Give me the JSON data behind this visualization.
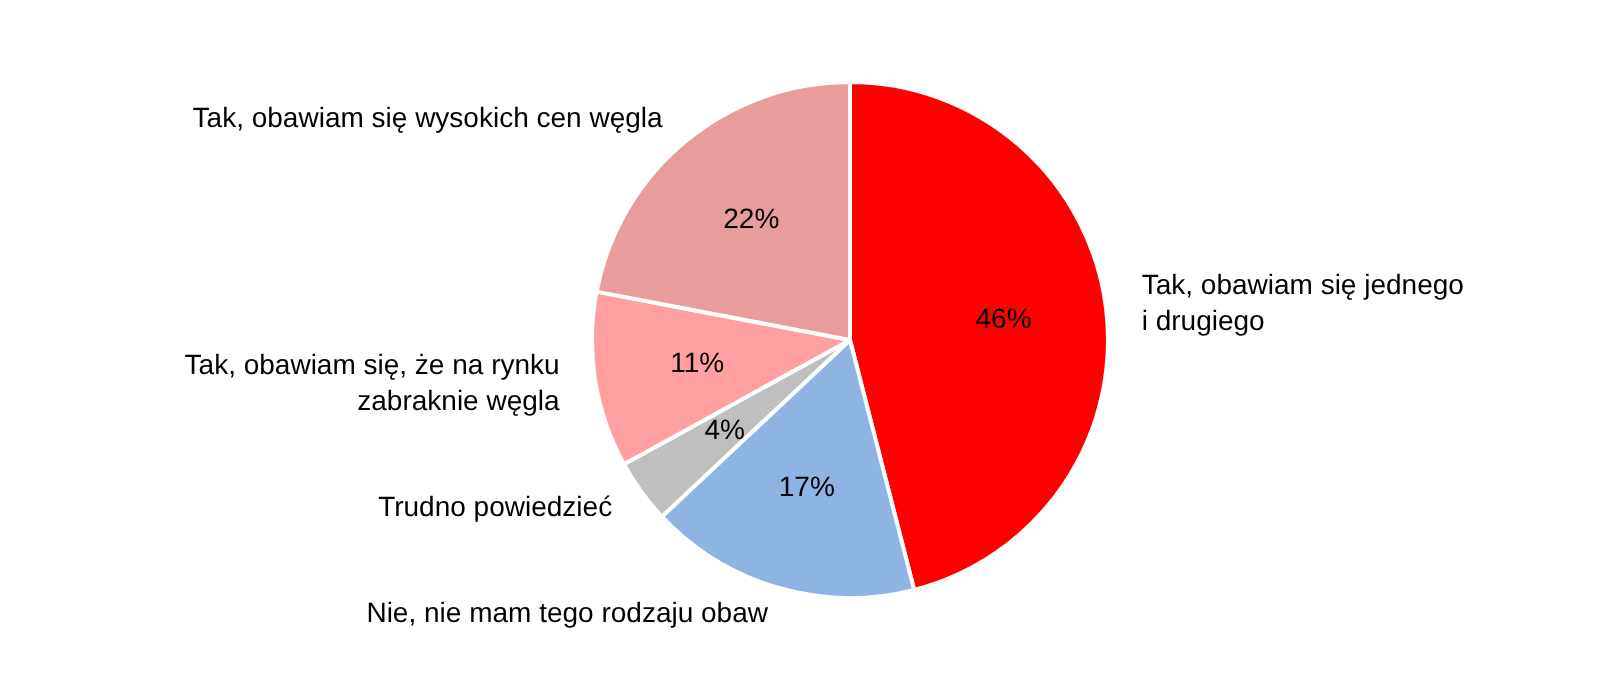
{
  "chart_data": {
    "type": "pie",
    "categories": [
      "Tak, obawiam się jednego\ni drugiego",
      "Nie, nie mam tego rodzaju obaw",
      "Trudno powiedzieć",
      "Tak, obawiam się, że na rynku\nzabraknie węgla",
      "Tak, obawiam się wysokich cen węgla"
    ],
    "values": [
      46,
      17,
      4,
      11,
      22
    ],
    "colors": [
      "#ff0000",
      "#8eb4e3",
      "#bfbfbf",
      "#ff9f9f",
      "#e99c9c"
    ],
    "value_labels": [
      "46%",
      "17%",
      "4%",
      "11%",
      "22%"
    ],
    "legend": false
  }
}
